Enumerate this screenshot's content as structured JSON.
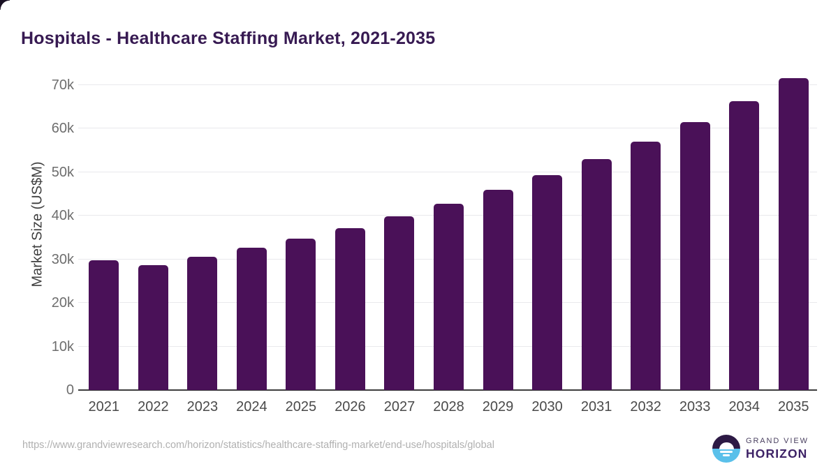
{
  "header": {
    "title": "Hospitals - Healthcare Staffing Market, 2021-2035"
  },
  "chart_data": {
    "type": "bar",
    "title": "Hospitals - Healthcare Staffing Market, 2021-2035",
    "categories": [
      "2021",
      "2022",
      "2023",
      "2024",
      "2025",
      "2026",
      "2027",
      "2028",
      "2029",
      "2030",
      "2031",
      "2032",
      "2033",
      "2034",
      "2035"
    ],
    "values": [
      29800,
      28700,
      30600,
      32700,
      34800,
      37200,
      39800,
      42700,
      45900,
      49300,
      52900,
      57000,
      61400,
      66200,
      71600
    ],
    "xlabel": "",
    "ylabel": "Market Size (US$M)",
    "ylim": [
      0,
      72000
    ],
    "yticks": [
      {
        "value": 0,
        "label": "0"
      },
      {
        "value": 10000,
        "label": "10k"
      },
      {
        "value": 20000,
        "label": "20k"
      },
      {
        "value": 30000,
        "label": "30k"
      },
      {
        "value": 40000,
        "label": "40k"
      },
      {
        "value": 50000,
        "label": "50k"
      },
      {
        "value": 60000,
        "label": "60k"
      },
      {
        "value": 70000,
        "label": "70k"
      }
    ],
    "grid": true,
    "legend": false,
    "bar_color": "#4a1158"
  },
  "footer": {
    "source_url": "https://www.grandviewresearch.com/horizon/statistics/healthcare-staffing-market/end-use/hospitals/global",
    "logo": {
      "line1": "GRAND VIEW",
      "line2": "HORIZON"
    }
  },
  "colors": {
    "bar": "#4a1158",
    "title": "#371a52",
    "gridline": "#e9e9ec",
    "axis_line": "#3d3d3d",
    "y_tick_text": "#6e6e6e",
    "x_tick_text": "#4a4a4a",
    "source_text": "#b0b0b0",
    "logo_dark_half": "#2d1a45",
    "logo_blue_half": "#5ac0ea",
    "background": "#ffffff"
  }
}
